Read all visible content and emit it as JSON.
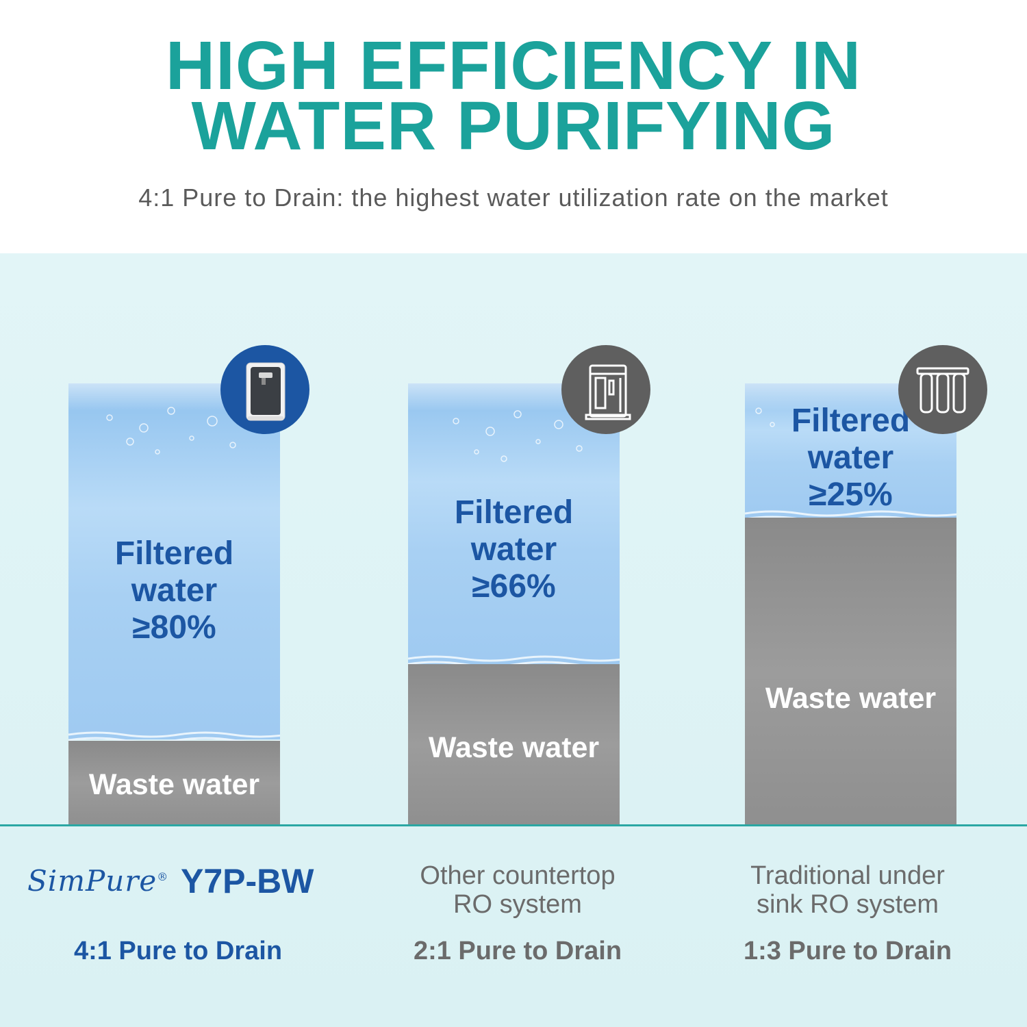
{
  "header": {
    "title_line1": "HIGH EFFICIENCY IN",
    "title_line2": "WATER PURIFYING",
    "subtitle": "4:1 Pure to Drain: the highest water utilization rate on the market"
  },
  "colors": {
    "accent": "#1ba29b",
    "brand_blue": "#1c56a3",
    "waste_gray": "#999999",
    "panel_bg": "#e2f5f7"
  },
  "columns": [
    {
      "filtered_label_1": "Filtered",
      "filtered_label_2": "water",
      "filtered_percent": "≥80%",
      "filtered_fraction": 0.8,
      "waste_label": "Waste water",
      "badge_icon": "countertop-purifier-icon",
      "brand_logo": "SimPure",
      "brand_reg": "®",
      "model": "Y7P-BW",
      "ratio": "4:1 Pure to Drain"
    },
    {
      "filtered_label_1": "Filtered",
      "filtered_label_2": "water",
      "filtered_percent": "≥66%",
      "filtered_fraction": 0.66,
      "waste_label": "Waste water",
      "badge_icon": "ro-system-icon",
      "caption_1": "Other countertop",
      "caption_2": "RO system",
      "ratio": "2:1 Pure to Drain"
    },
    {
      "filtered_label_1": "Filtered",
      "filtered_label_2": "water",
      "filtered_percent": "≥25%",
      "filtered_fraction": 0.25,
      "waste_label": "Waste water",
      "badge_icon": "three-filter-cartridges-icon",
      "caption_1": "Traditional under",
      "caption_2": "sink RO system",
      "ratio": "1:3 Pure to Drain"
    }
  ]
}
